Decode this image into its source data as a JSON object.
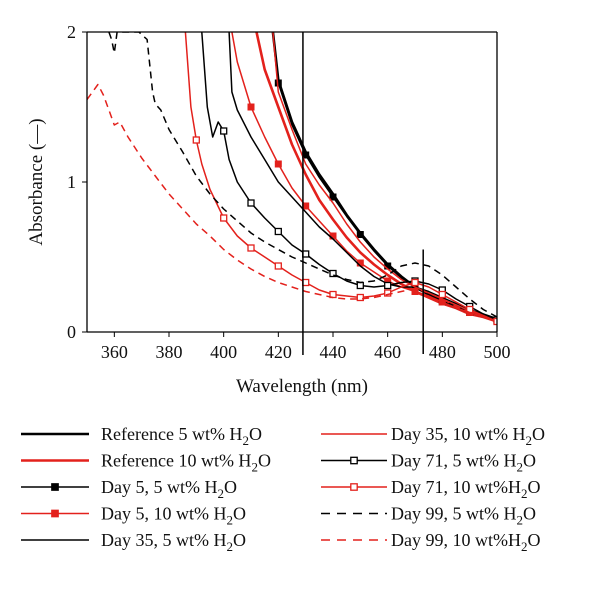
{
  "chart_data": {
    "type": "line",
    "title": "",
    "xlabel": "Wavelength (nm)",
    "ylabel": "Absorbance (—)",
    "xlim": [
      350,
      500
    ],
    "ylim": [
      0,
      2
    ],
    "xticks": [
      "360",
      "380",
      "400",
      "420",
      "440",
      "460",
      "480",
      "500"
    ],
    "yticks": [
      "0",
      "1",
      "2"
    ],
    "grid": false,
    "legend_placement": "bottom",
    "colors": {
      "black": "#000000",
      "red": "#e3211c"
    },
    "vertical_reference_lines": [
      429,
      473
    ],
    "series": [
      {
        "name": "Reference 5 wt% H2O",
        "color": "#000000",
        "style": "solid",
        "width": 2.6,
        "marker": "none",
        "x": [
          418,
          420,
          425,
          430,
          435,
          440,
          445,
          450,
          455,
          460,
          465,
          470,
          475,
          480,
          485,
          490,
          495,
          500
        ],
        "y": [
          2.0,
          1.68,
          1.4,
          1.2,
          1.05,
          0.92,
          0.78,
          0.66,
          0.55,
          0.45,
          0.37,
          0.3,
          0.25,
          0.21,
          0.17,
          0.13,
          0.11,
          0.08
        ]
      },
      {
        "name": "Reference 10 wt% H2O",
        "color": "#e3211c",
        "style": "solid",
        "width": 2.6,
        "marker": "none",
        "x": [
          412,
          415,
          420,
          425,
          430,
          435,
          440,
          445,
          450,
          455,
          460,
          465,
          470,
          475,
          480,
          485,
          490,
          495,
          500
        ],
        "y": [
          2.0,
          1.75,
          1.5,
          1.25,
          1.05,
          0.88,
          0.75,
          0.63,
          0.53,
          0.45,
          0.38,
          0.32,
          0.27,
          0.23,
          0.19,
          0.16,
          0.12,
          0.1,
          0.07
        ]
      },
      {
        "name": "Day 5, 5 wt% H2O",
        "color": "#000000",
        "style": "solid",
        "width": 1.5,
        "marker": "filled-square",
        "x": [
          418,
          420,
          425,
          430,
          435,
          440,
          445,
          450,
          455,
          460,
          465,
          470,
          475,
          480,
          485,
          490,
          495,
          500
        ],
        "y": [
          2.0,
          1.66,
          1.38,
          1.18,
          1.03,
          0.9,
          0.77,
          0.65,
          0.54,
          0.44,
          0.36,
          0.3,
          0.25,
          0.2,
          0.16,
          0.13,
          0.1,
          0.08
        ],
        "marker_x": [
          420,
          430,
          440,
          450,
          460,
          470,
          480,
          490,
          500
        ]
      },
      {
        "name": "Day 5, 10 wt% H2O",
        "color": "#e3211c",
        "style": "solid",
        "width": 1.5,
        "marker": "filled-square",
        "x": [
          403,
          405,
          410,
          415,
          420,
          425,
          430,
          435,
          440,
          445,
          450,
          455,
          460,
          465,
          470,
          475,
          480,
          485,
          490,
          495,
          500
        ],
        "y": [
          2.0,
          1.8,
          1.5,
          1.3,
          1.12,
          0.96,
          0.84,
          0.74,
          0.64,
          0.54,
          0.46,
          0.4,
          0.34,
          0.3,
          0.27,
          0.24,
          0.2,
          0.16,
          0.13,
          0.1,
          0.07
        ],
        "marker_x": [
          410,
          420,
          430,
          440,
          450,
          460,
          470,
          480,
          490,
          500
        ]
      },
      {
        "name": "Day 35, 5 wt% H2O",
        "color": "#000000",
        "style": "solid",
        "width": 1.5,
        "marker": "none",
        "x": [
          402,
          403,
          405,
          410,
          415,
          420,
          425,
          430,
          435,
          440,
          445,
          450,
          455,
          460,
          465,
          470,
          475,
          480,
          485,
          490,
          495,
          500
        ],
        "y": [
          2.0,
          1.6,
          1.48,
          1.3,
          1.15,
          1.0,
          0.9,
          0.8,
          0.7,
          0.62,
          0.53,
          0.44,
          0.37,
          0.32,
          0.3,
          0.3,
          0.27,
          0.23,
          0.19,
          0.15,
          0.12,
          0.09
        ]
      },
      {
        "name": "Day 35, 10 wt% H2O",
        "color": "#e3211c",
        "style": "solid",
        "width": 1.5,
        "marker": "none",
        "x": [
          418,
          420,
          425,
          430,
          435,
          440,
          445,
          450,
          455,
          460,
          465,
          470,
          475,
          480,
          485,
          490,
          495,
          500
        ],
        "y": [
          2.0,
          1.6,
          1.35,
          1.12,
          0.98,
          0.86,
          0.72,
          0.6,
          0.5,
          0.42,
          0.35,
          0.3,
          0.26,
          0.22,
          0.18,
          0.14,
          0.11,
          0.08
        ]
      },
      {
        "name": "Day 71, 5 wt% H2O",
        "color": "#000000",
        "style": "solid",
        "width": 1.5,
        "marker": "open-square",
        "x": [
          392,
          394,
          396,
          398,
          400,
          402,
          405,
          410,
          415,
          420,
          425,
          430,
          435,
          440,
          445,
          450,
          455,
          460,
          465,
          470,
          475,
          480,
          485,
          490,
          495,
          500
        ],
        "y": [
          2.0,
          1.5,
          1.3,
          1.4,
          1.34,
          1.15,
          1.0,
          0.86,
          0.76,
          0.67,
          0.58,
          0.52,
          0.45,
          0.39,
          0.34,
          0.31,
          0.3,
          0.31,
          0.33,
          0.34,
          0.32,
          0.28,
          0.22,
          0.17,
          0.12,
          0.08
        ],
        "marker_x": [
          400,
          410,
          420,
          430,
          440,
          450,
          460,
          470,
          480,
          490,
          500
        ]
      },
      {
        "name": "Day 71, 10 wt%H2O",
        "color": "#e3211c",
        "style": "solid",
        "width": 1.5,
        "marker": "open-square",
        "x": [
          386,
          388,
          390,
          392,
          395,
          400,
          405,
          410,
          415,
          420,
          425,
          430,
          435,
          440,
          445,
          450,
          455,
          460,
          465,
          470,
          475,
          480,
          485,
          490,
          495,
          500
        ],
        "y": [
          2.0,
          1.5,
          1.28,
          1.12,
          0.95,
          0.76,
          0.64,
          0.56,
          0.5,
          0.44,
          0.38,
          0.33,
          0.28,
          0.25,
          0.24,
          0.23,
          0.24,
          0.26,
          0.3,
          0.33,
          0.3,
          0.25,
          0.2,
          0.15,
          0.11,
          0.07
        ],
        "marker_x": [
          380,
          390,
          400,
          410,
          420,
          430,
          440,
          450,
          460,
          470,
          480,
          490,
          500
        ]
      },
      {
        "name": "Day 99, 5 wt% H2O",
        "color": "#000000",
        "style": "dashed",
        "width": 1.5,
        "marker": "none",
        "x": [
          358,
          359,
          360,
          361,
          369,
          372,
          374,
          375,
          377,
          380,
          385,
          390,
          395,
          400,
          405,
          410,
          415,
          420,
          425,
          430,
          435,
          440,
          445,
          450,
          455,
          460,
          465,
          470,
          475,
          480,
          485,
          490,
          495,
          500
        ],
        "y": [
          2.0,
          1.95,
          1.86,
          2.0,
          2.0,
          1.95,
          1.6,
          1.52,
          1.48,
          1.35,
          1.2,
          1.04,
          0.92,
          0.82,
          0.74,
          0.66,
          0.6,
          0.55,
          0.5,
          0.46,
          0.42,
          0.38,
          0.35,
          0.33,
          0.34,
          0.38,
          0.44,
          0.46,
          0.44,
          0.38,
          0.3,
          0.22,
          0.15,
          0.1
        ]
      },
      {
        "name": "Day 99, 10 wt%H2O",
        "color": "#e3211c",
        "style": "dashed",
        "width": 1.5,
        "marker": "none",
        "x": [
          350,
          352,
          354,
          356,
          358,
          360,
          362,
          365,
          370,
          375,
          380,
          385,
          390,
          395,
          400,
          405,
          410,
          415,
          420,
          425,
          430,
          435,
          440,
          445,
          450,
          455,
          460,
          465,
          470,
          475,
          480,
          485,
          490,
          495,
          500
        ],
        "y": [
          1.55,
          1.6,
          1.65,
          1.58,
          1.48,
          1.38,
          1.4,
          1.3,
          1.16,
          1.04,
          0.92,
          0.82,
          0.72,
          0.64,
          0.55,
          0.48,
          0.42,
          0.37,
          0.33,
          0.3,
          0.27,
          0.25,
          0.23,
          0.22,
          0.22,
          0.23,
          0.25,
          0.27,
          0.29,
          0.26,
          0.22,
          0.17,
          0.13,
          0.1,
          0.07
        ]
      }
    ]
  },
  "legend": {
    "left": [
      {
        "pre": "Reference 5 wt% H",
        "sub": "2",
        "post": "O",
        "color": "#000000",
        "style": "solid",
        "width": 2.6,
        "marker": "none"
      },
      {
        "pre": "Reference 10 wt% H",
        "sub": "2",
        "post": "O",
        "color": "#e3211c",
        "style": "solid",
        "width": 2.6,
        "marker": "none"
      },
      {
        "pre": "Day 5, 5 wt% H",
        "sub": "2",
        "post": "O",
        "color": "#000000",
        "style": "solid",
        "width": 1.5,
        "marker": "filled-square"
      },
      {
        "pre": "Day 5, 10 wt% H",
        "sub": "2",
        "post": "O",
        "color": "#e3211c",
        "style": "solid",
        "width": 1.5,
        "marker": "filled-square"
      },
      {
        "pre": "Day 35, 5 wt% H",
        "sub": "2",
        "post": "O",
        "color": "#000000",
        "style": "solid",
        "width": 1.5,
        "marker": "none"
      }
    ],
    "right": [
      {
        "pre": "Day 35, 10 wt% H",
        "sub": "2",
        "post": "O",
        "color": "#e3211c",
        "style": "solid",
        "width": 1.5,
        "marker": "none"
      },
      {
        "pre": "Day 71, 5 wt% H",
        "sub": "2",
        "post": "O",
        "color": "#000000",
        "style": "solid",
        "width": 1.5,
        "marker": "open-square"
      },
      {
        "pre": "Day 71, 10 wt%H",
        "sub": "2",
        "post": "O",
        "color": "#e3211c",
        "style": "solid",
        "width": 1.5,
        "marker": "open-square"
      },
      {
        "pre": "Day 99, 5 wt% H",
        "sub": "2",
        "post": "O",
        "color": "#000000",
        "style": "dashed",
        "width": 1.5,
        "marker": "none"
      },
      {
        "pre": "Day 99, 10 wt%H",
        "sub": "2",
        "post": "O",
        "color": "#e3211c",
        "style": "dashed",
        "width": 1.5,
        "marker": "none"
      }
    ]
  }
}
